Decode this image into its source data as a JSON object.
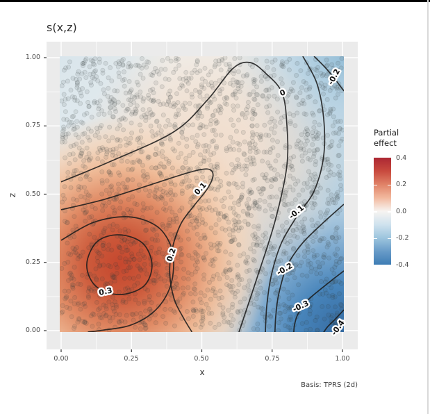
{
  "ui": {
    "title": "s(x,z)",
    "caption": "Basis: TPRS (2d)",
    "axes": {
      "x": {
        "title": "x",
        "tick_labels": [
          "0.00",
          "0.25",
          "0.50",
          "0.75",
          "1.00"
        ]
      },
      "z": {
        "title": "z",
        "tick_labels": [
          "1.00",
          "0.75",
          "0.50",
          "0.25",
          "0.00"
        ]
      }
    },
    "legend": {
      "title_line1": "Partial",
      "title_line2": "effect",
      "tick_labels": [
        "0.4",
        "0.2",
        "0.0",
        "-0.2",
        "-0.4"
      ],
      "bar_colors_top_to_bottom": [
        "#AC2733",
        "#C84A3E",
        "#E08267",
        "#F2B99E",
        "#F7F4F1",
        "#CFE2EE",
        "#9DC5DE",
        "#689BC8",
        "#3E7DB5"
      ]
    },
    "colors": {
      "panel_background": "#EBEBEB",
      "gridline": "#FFFFFF",
      "field_base": "#EFEFEC",
      "top_left_blue": "#D7E4EB",
      "left_strip_blue": "#DEE9EF",
      "warm_mid": "#F2D5BE",
      "hill_red": "#C5472E",
      "hill_red_mid": "#E08A64",
      "hill_red_outer": "#F3D3B8",
      "right_mid_blue": "#9EC3DB",
      "top_right_blue": "#8FBBD6",
      "corner_blue_dark": "#34699F",
      "corner_blue": "#4885BB",
      "contour_line": "#1C1C1C",
      "scatter_point": "#3B4046",
      "axis_text": "#4D4D4D",
      "tick_mark": "#333333"
    }
  },
  "chart_data": {
    "type": "heatmap",
    "subtype": "2d-smooth-filled-contour-with-scatter",
    "title": "s(x,z)",
    "xlabel": "x",
    "ylabel": "z",
    "xlim": [
      0,
      1
    ],
    "ylim": [
      0,
      1
    ],
    "x_ticks": [
      0,
      0.25,
      0.5,
      0.75,
      1
    ],
    "y_ticks": [
      0,
      0.25,
      0.5,
      0.75,
      1
    ],
    "grid": true,
    "fill_legend": {
      "title": "Partial effect",
      "limits": [
        -0.4,
        0.4
      ],
      "ticks": [
        0.4,
        0.2,
        0.0,
        -0.2,
        -0.4
      ],
      "palette": "RdBu diverging (red = positive, white = 0, blue = negative)",
      "position": "right"
    },
    "surface_summary": {
      "peak": {
        "x": 0.21,
        "z": 0.24,
        "value": 0.35
      },
      "minimum": {
        "x": 1.0,
        "z": 0.0,
        "value": -0.45
      },
      "zero_contour_runs": "from left edge near z=0.55 up over a hump near x=0.67,z=0.98 then down to bottom edge near x=0.63",
      "description": "Estimated smooth s(x,z): positive red hill centered near (0.21,0.24), values decreasing toward blue bottom-right corner"
    },
    "contour_levels_labeled": [
      0.3,
      0.2,
      0.1,
      0,
      -0.1,
      -0.2,
      -0.3,
      -0.4
    ],
    "contours": [
      {
        "level": 0.3,
        "closed": true,
        "points": [
          [
            0.091,
            0.242
          ],
          [
            0.128,
            0.326
          ],
          [
            0.207,
            0.351
          ],
          [
            0.289,
            0.321
          ],
          [
            0.323,
            0.242
          ],
          [
            0.294,
            0.163
          ],
          [
            0.207,
            0.132
          ],
          [
            0.123,
            0.163
          ]
        ]
      },
      {
        "level": 0.2,
        "closed": false,
        "points": [
          [
            0.0,
            0.331
          ],
          [
            0.116,
            0.397
          ],
          [
            0.24,
            0.417
          ],
          [
            0.338,
            0.384
          ],
          [
            0.388,
            0.316
          ],
          [
            0.4,
            0.239
          ],
          [
            0.383,
            0.148
          ],
          [
            0.331,
            0.071
          ],
          [
            0.247,
            0.02
          ],
          [
            0.15,
            0.002
          ],
          [
            0.095,
            -0.005
          ]
        ]
      },
      {
        "level": 0.1,
        "closed": false,
        "points": [
          [
            0.0,
            0.443
          ],
          [
            0.15,
            0.48
          ],
          [
            0.32,
            0.535
          ],
          [
            0.45,
            0.578
          ],
          [
            0.52,
            0.592
          ],
          [
            0.54,
            0.57
          ],
          [
            0.52,
            0.52
          ],
          [
            0.47,
            0.455
          ],
          [
            0.425,
            0.39
          ],
          [
            0.395,
            0.3
          ],
          [
            0.386,
            0.21
          ],
          [
            0.402,
            0.115
          ],
          [
            0.434,
            0.048
          ],
          [
            0.465,
            -0.005
          ]
        ]
      },
      {
        "level": 0.0,
        "closed": false,
        "points": [
          [
            0.0,
            0.545
          ],
          [
            0.178,
            0.621
          ],
          [
            0.4,
            0.728
          ],
          [
            0.52,
            0.845
          ],
          [
            0.61,
            0.96
          ],
          [
            0.672,
            0.982
          ],
          [
            0.73,
            0.94
          ],
          [
            0.785,
            0.872
          ],
          [
            0.802,
            0.76
          ],
          [
            0.802,
            0.601
          ],
          [
            0.76,
            0.4
          ],
          [
            0.692,
            0.18
          ],
          [
            0.632,
            -0.005
          ]
        ]
      },
      {
        "level": -0.1,
        "closed": false,
        "points": [
          [
            0.859,
            1.005
          ],
          [
            0.909,
            0.906
          ],
          [
            0.933,
            0.779
          ],
          [
            0.933,
            0.639
          ],
          [
            0.899,
            0.511
          ],
          [
            0.84,
            0.422
          ],
          [
            0.783,
            0.321
          ],
          [
            0.748,
            0.206
          ],
          [
            0.731,
            0.092
          ],
          [
            0.726,
            -0.005
          ]
        ]
      },
      {
        "level": -0.2,
        "closed": false,
        "points": [
          [
            0.899,
            1.005
          ],
          [
            0.936,
            0.967
          ],
          [
            0.97,
            0.926
          ],
          [
            1.005,
            0.878
          ]
        ]
      },
      {
        "level": -0.2,
        "closed": false,
        "points": [
          [
            1.005,
            0.463
          ],
          [
            0.923,
            0.387
          ],
          [
            0.854,
            0.316
          ],
          [
            0.802,
            0.234
          ],
          [
            0.773,
            0.132
          ],
          [
            0.763,
            0.053
          ],
          [
            0.76,
            -0.005
          ]
        ]
      },
      {
        "level": -0.3,
        "closed": false,
        "points": [
          [
            1.005,
            0.219
          ],
          [
            0.938,
            0.165
          ],
          [
            0.877,
            0.112
          ],
          [
            0.842,
            0.061
          ],
          [
            0.83,
            0.023
          ],
          [
            0.827,
            -0.006
          ]
        ]
      },
      {
        "level": -0.4,
        "closed": false,
        "points": [
          [
            1.005,
            0.076
          ],
          [
            0.973,
            0.041
          ],
          [
            0.948,
            0.015
          ],
          [
            0.933,
            -0.006
          ]
        ]
      }
    ],
    "contour_labels": [
      {
        "text": "0.3",
        "x": 0.158,
        "z": 0.142,
        "rot": -12
      },
      {
        "text": "0.2",
        "x": 0.393,
        "z": 0.277,
        "rot": -72
      },
      {
        "text": "0.1",
        "x": 0.496,
        "z": 0.519,
        "rot": -48
      },
      {
        "text": "0",
        "x": 0.788,
        "z": 0.87,
        "rot": -22
      },
      {
        "text": "-0.2",
        "x": 0.971,
        "z": 0.929,
        "rot": -62
      },
      {
        "text": "-0.1",
        "x": 0.837,
        "z": 0.433,
        "rot": -40
      },
      {
        "text": "-0.2",
        "x": 0.795,
        "z": 0.224,
        "rot": -30
      },
      {
        "text": "-0.3",
        "x": 0.852,
        "z": 0.088,
        "rot": -25
      },
      {
        "text": "-0.4",
        "x": 0.985,
        "z": 0.01,
        "rot": -55
      }
    ],
    "scatter": {
      "description": "observation/partial-residual points overlaid on surface",
      "count_estimate": 2200,
      "distribution": "approximately uniform over [0,1] x [0,1]",
      "marker": {
        "shape": "circle",
        "alpha": 0.12,
        "color": "#3B4046"
      },
      "seed_for_recreation": 42
    },
    "caption": "Basis: TPRS (2d)"
  }
}
